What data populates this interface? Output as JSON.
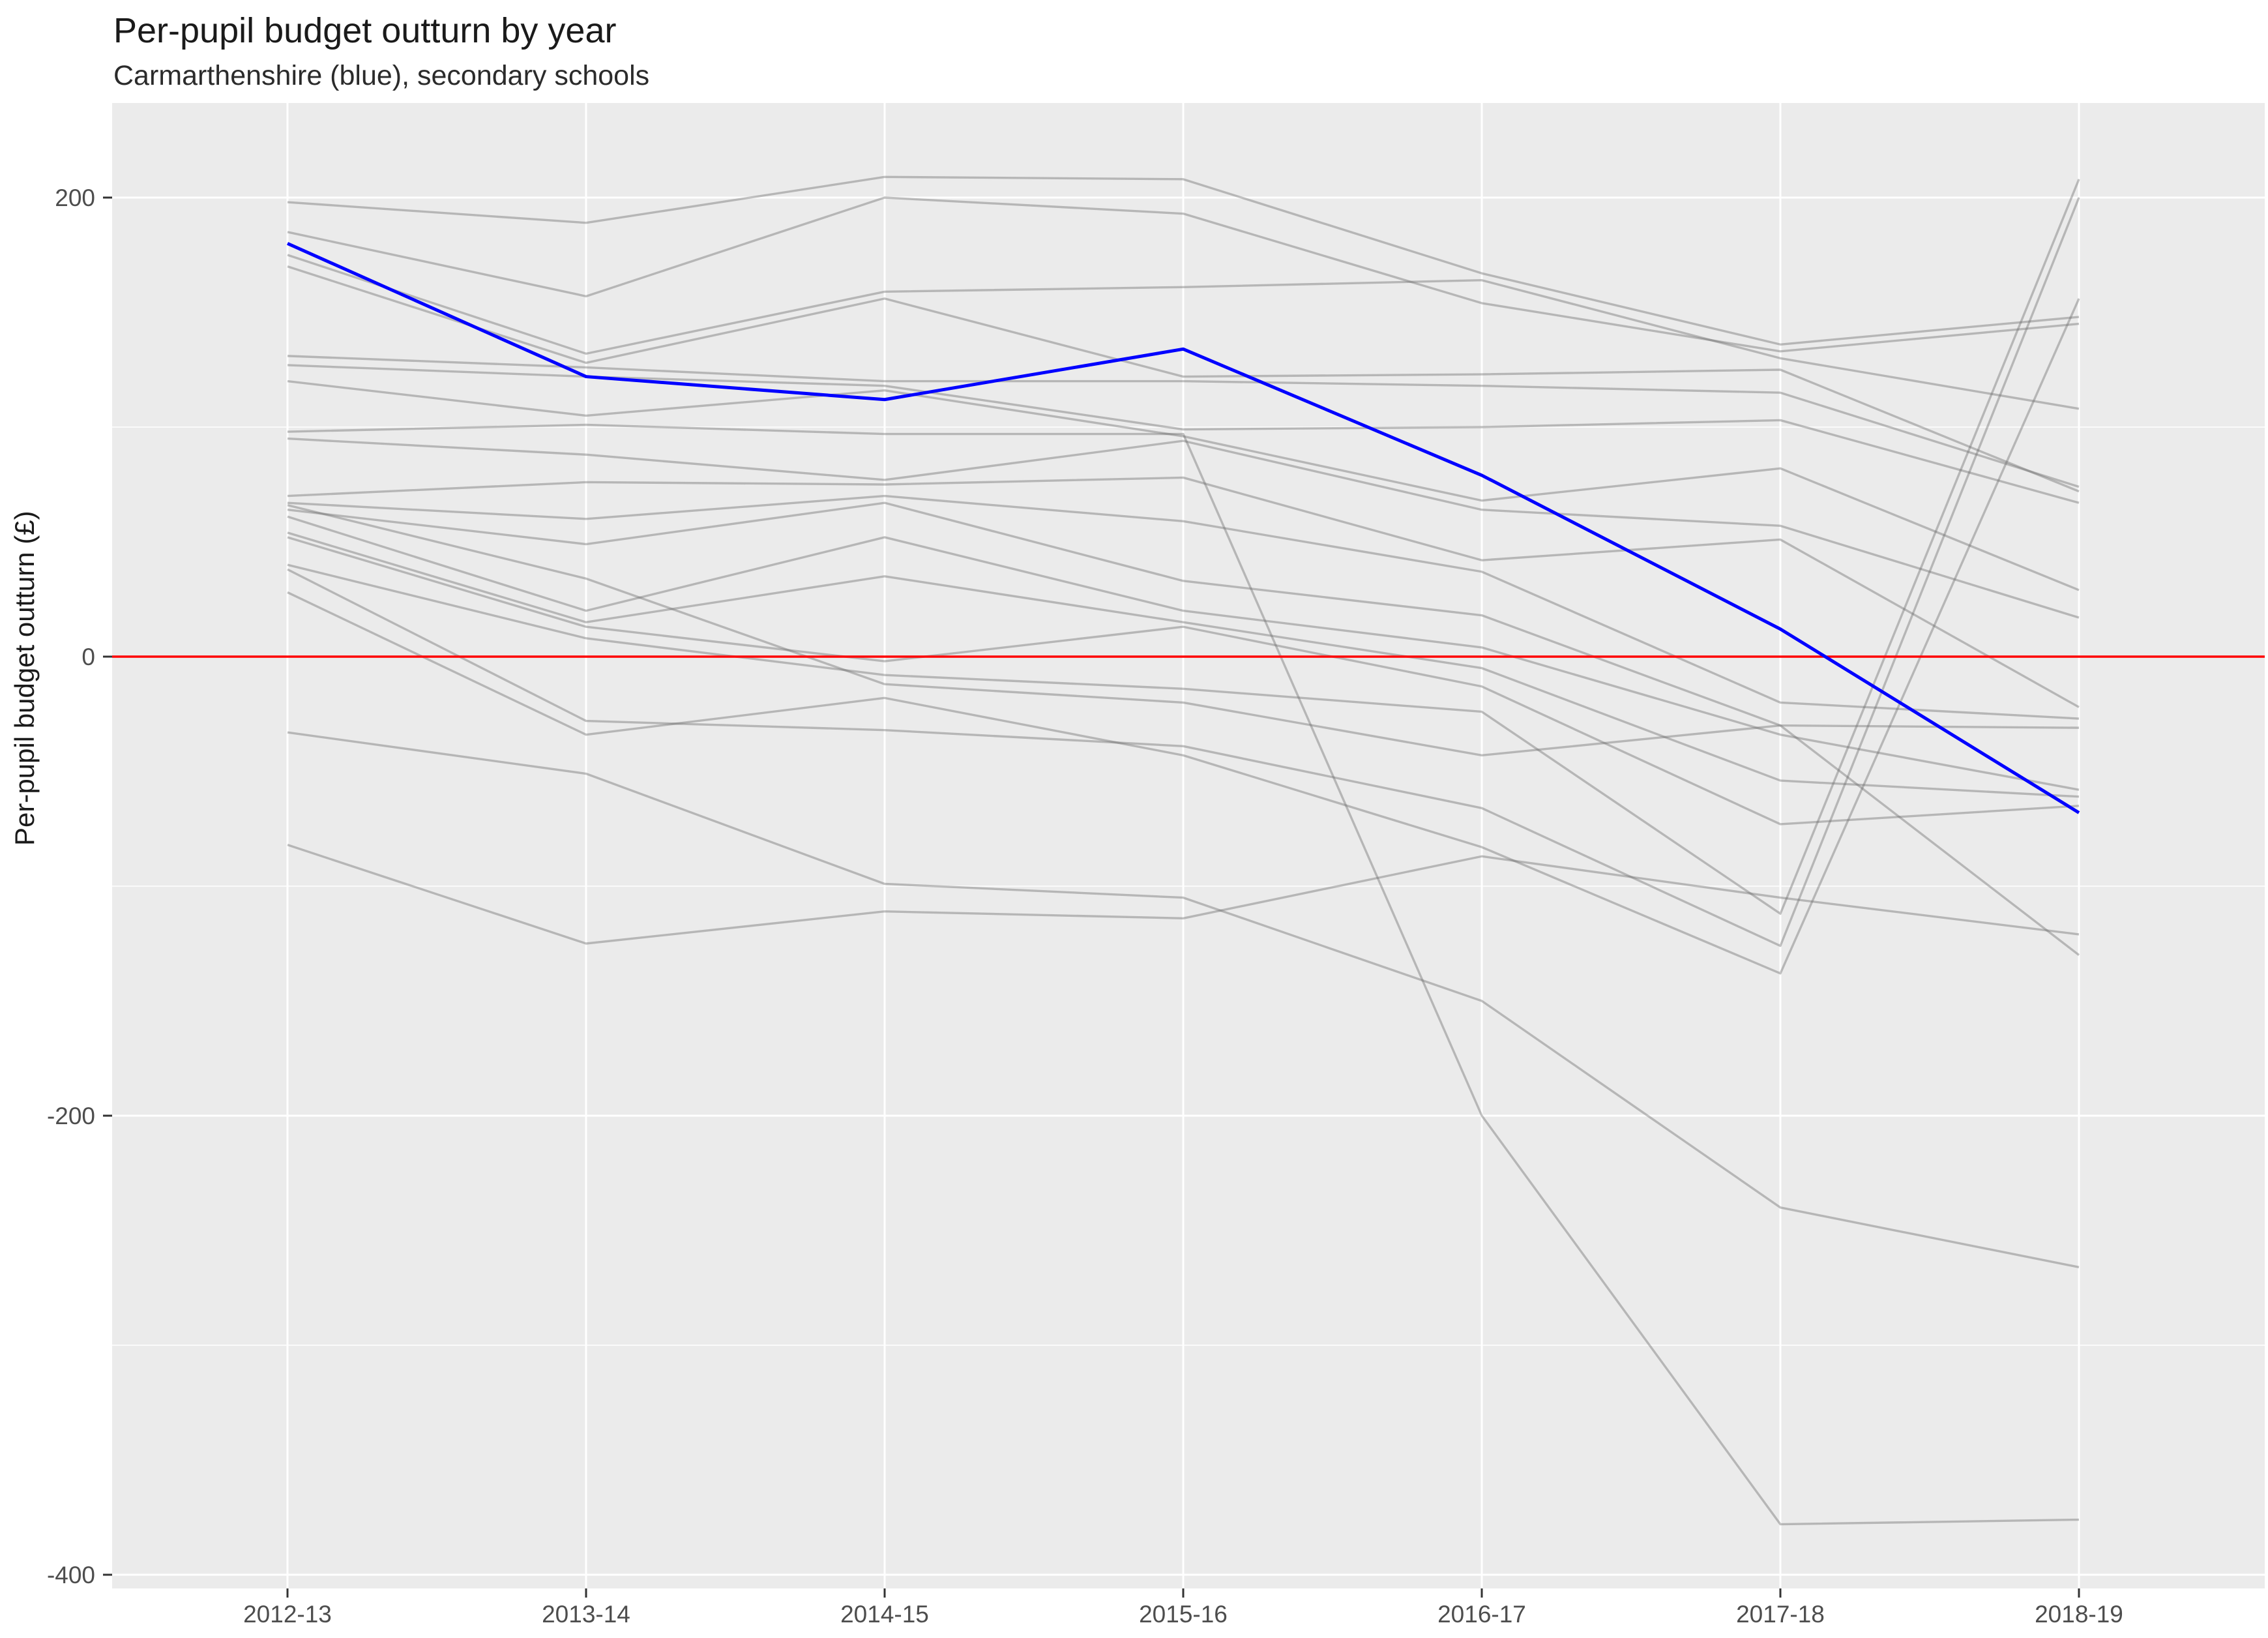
{
  "header": {
    "title": "Per-pupil budget outturn by year",
    "subtitle": "Carmarthenshire (blue), secondary schools"
  },
  "y_axis": {
    "title": "Per-pupil budget outturn (£)",
    "tick_labels": [
      "200",
      "0",
      "-200",
      "-400"
    ],
    "tick_values": [
      200,
      0,
      -200,
      -400
    ]
  },
  "x_axis": {
    "labels": [
      "2012-13",
      "2013-14",
      "2014-15",
      "2015-16",
      "2016-17",
      "2017-18",
      "2018-19"
    ]
  },
  "colors": {
    "highlight": "#0000FF",
    "reference": "#FF0000",
    "other_lines": "#6E6E6E",
    "panel_background": "#EBEBEB",
    "grid": "#FFFFFF",
    "tick_text": "#4D4D4D"
  },
  "chart_data": {
    "type": "line",
    "title": "Per-pupil budget outturn by year",
    "subtitle": "Carmarthenshire (blue), secondary schools",
    "xlabel": "",
    "ylabel": "Per-pupil budget outturn (£)",
    "categories": [
      "2012-13",
      "2013-14",
      "2014-15",
      "2015-16",
      "2016-17",
      "2017-18",
      "2018-19"
    ],
    "ylim": [
      -415,
      241
    ],
    "y_major_ticks": [
      200,
      0,
      -200,
      -400
    ],
    "y_minor_ticks": [
      100,
      -100,
      -300
    ],
    "grid": "on",
    "legend_position": "none",
    "reference_line": {
      "y": 0,
      "color": "#FF0000"
    },
    "highlight_series": {
      "name": "Carmarthenshire",
      "color": "#0000FF",
      "values": [
        180,
        122,
        112,
        134,
        79,
        12,
        -68
      ]
    },
    "other_series": [
      {
        "values": [
          198,
          189,
          209,
          208,
          167,
          136,
          148
        ]
      },
      {
        "values": [
          185,
          157,
          200,
          193,
          154,
          133,
          145
        ]
      },
      {
        "values": [
          175,
          132,
          159,
          161,
          164,
          130,
          108
        ]
      },
      {
        "values": [
          170,
          128,
          156,
          122,
          123,
          125,
          72
        ]
      },
      {
        "values": [
          131,
          126,
          120,
          120,
          118,
          115,
          74
        ]
      },
      {
        "values": [
          127,
          122,
          118,
          99,
          100,
          103,
          67
        ]
      },
      {
        "values": [
          120,
          105,
          116,
          96,
          68,
          82,
          29
        ]
      },
      {
        "values": [
          98,
          101,
          97,
          97,
          -200,
          -378,
          -376
        ]
      },
      {
        "values": [
          95,
          88,
          77,
          94,
          64,
          57,
          17
        ]
      },
      {
        "values": [
          70,
          76,
          75,
          78,
          42,
          51,
          -22
        ]
      },
      {
        "values": [
          67,
          60,
          70,
          59,
          37,
          -20,
          -27
        ]
      },
      {
        "values": [
          64,
          49,
          67,
          33,
          18,
          -30,
          -31
        ]
      },
      {
        "values": [
          61,
          20,
          52,
          20,
          4,
          -34,
          -58
        ]
      },
      {
        "values": [
          54,
          15,
          35,
          15,
          -5,
          -54,
          -61
        ]
      },
      {
        "values": [
          52,
          13,
          -2,
          13,
          -13,
          -73,
          -65
        ]
      },
      {
        "values": [
          40,
          8,
          -8,
          -14,
          -24,
          -112,
          208
        ]
      },
      {
        "values": [
          38,
          -28,
          -32,
          -39,
          -66,
          -126,
          200
        ]
      },
      {
        "values": [
          28,
          -34,
          -18,
          -43,
          -83,
          -138,
          156
        ]
      },
      {
        "values": [
          -33,
          -51,
          -99,
          -105,
          -150,
          -240,
          -266
        ]
      },
      {
        "values": [
          -82,
          -125,
          -111,
          -114,
          -87,
          -105,
          -121
        ]
      },
      {
        "values": [
          66,
          34,
          -12,
          -20,
          -43,
          -30,
          -130
        ]
      }
    ]
  }
}
